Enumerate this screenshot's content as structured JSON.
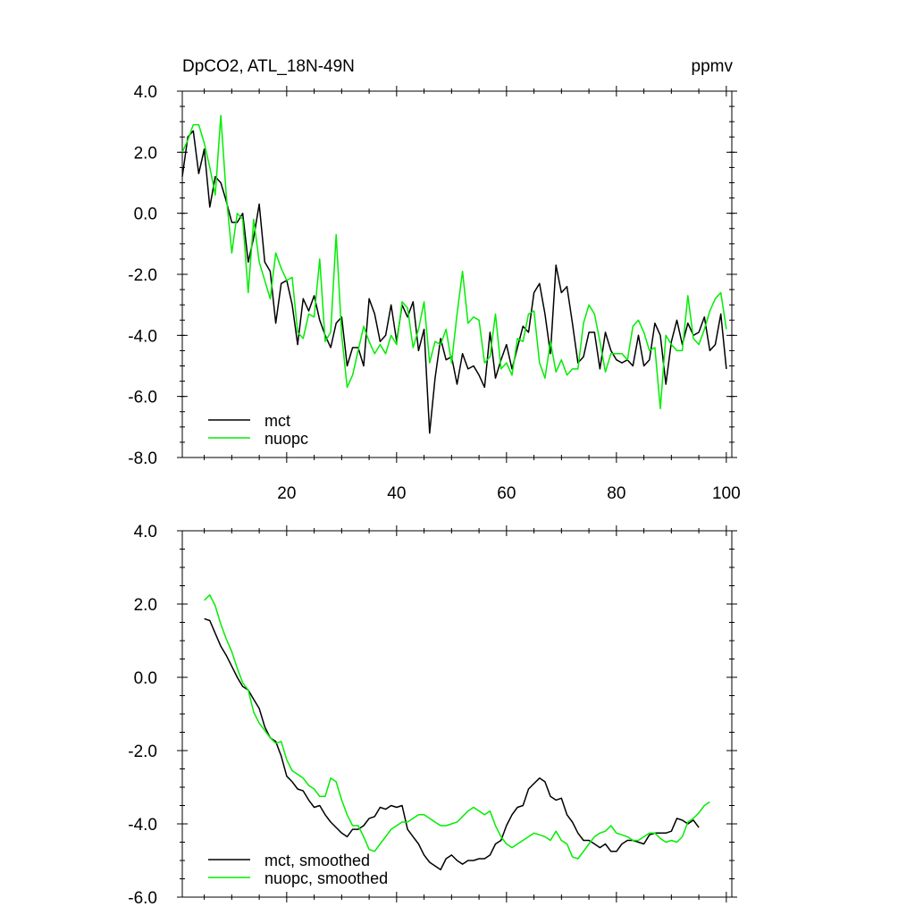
{
  "colors": {
    "mct": "#000000",
    "nuopc": "#00ee00"
  },
  "chart_data": [
    {
      "type": "line",
      "title": "DpCO2, ATL_18N-49N",
      "units": "ppmv",
      "xlim": [
        1,
        101
      ],
      "ylim": [
        -8,
        4
      ],
      "x_ticks": [
        20,
        40,
        60,
        80,
        100
      ],
      "x_tick_labels": [
        "20",
        "40",
        "60",
        "80",
        "100"
      ],
      "y_ticks": [
        4,
        2,
        0,
        -2,
        -4,
        -6,
        -8
      ],
      "y_tick_labels": [
        "4.0",
        "2.0",
        "0.0",
        "-2.0",
        "-4.0",
        "-6.0",
        "-8.0"
      ],
      "legend": "bottom-left",
      "grid": false,
      "series": [
        {
          "name": "mct",
          "color": "#000000",
          "x_start": 1,
          "values": [
            1.2,
            2.5,
            2.7,
            1.3,
            2.1,
            0.2,
            1.2,
            1.0,
            0.4,
            -0.3,
            -0.3,
            0.0,
            -1.6,
            -0.8,
            0.3,
            -1.6,
            -1.9,
            -3.6,
            -2.3,
            -2.2,
            -3.0,
            -4.3,
            -2.8,
            -3.2,
            -2.7,
            -3.5,
            -4.0,
            -4.4,
            -3.6,
            -3.4,
            -5.0,
            -4.4,
            -4.4,
            -5.0,
            -2.8,
            -3.3,
            -4.2,
            -4.0,
            -3.0,
            -4.2,
            -3.0,
            -3.4,
            -2.9,
            -4.5,
            -3.8,
            -7.2,
            -5.4,
            -4.1,
            -4.8,
            -4.7,
            -5.6,
            -4.6,
            -5.1,
            -5.0,
            -5.3,
            -5.7,
            -3.9,
            -5.4,
            -4.8,
            -4.3,
            -5.1,
            -4.4,
            -3.7,
            -3.9,
            -2.6,
            -2.3,
            -3.3,
            -4.6,
            -1.7,
            -2.6,
            -2.4,
            -3.6,
            -4.9,
            -4.7,
            -3.9,
            -3.9,
            -5.1,
            -3.9,
            -4.5,
            -4.8,
            -4.9,
            -4.8,
            -5.0,
            -4.0,
            -5.0,
            -4.8,
            -3.6,
            -4.0,
            -5.6,
            -4.2,
            -3.5,
            -4.3,
            -3.6,
            -4.0,
            -3.9,
            -3.4,
            -4.5,
            -4.3,
            -3.3,
            -5.1
          ]
        },
        {
          "name": "nuopc",
          "color": "#00ee00",
          "x_start": 1,
          "values": [
            2.0,
            2.4,
            2.9,
            2.9,
            2.3,
            1.5,
            0.6,
            3.2,
            0.6,
            -1.3,
            0.0,
            -0.2,
            -2.6,
            -0.2,
            -1.6,
            -2.2,
            -2.8,
            -1.3,
            -1.8,
            -2.2,
            -2.1,
            -3.9,
            -4.1,
            -3.3,
            -3.4,
            -1.5,
            -4.2,
            -3.9,
            -0.7,
            -4.0,
            -5.7,
            -5.3,
            -4.5,
            -3.7,
            -4.2,
            -4.6,
            -4.3,
            -4.6,
            -4.0,
            -4.3,
            -2.9,
            -3.1,
            -4.4,
            -3.8,
            -2.9,
            -4.9,
            -4.2,
            -4.3,
            -3.8,
            -4.9,
            -3.3,
            -1.9,
            -3.6,
            -3.4,
            -3.5,
            -4.9,
            -4.7,
            -3.3,
            -5.1,
            -4.9,
            -5.3,
            -4.1,
            -4.2,
            -3.3,
            -3.2,
            -4.9,
            -5.4,
            -4.2,
            -5.2,
            -4.8,
            -5.3,
            -5.1,
            -5.1,
            -3.6,
            -3.0,
            -3.3,
            -4.2,
            -5.2,
            -4.6,
            -4.6,
            -4.6,
            -4.8,
            -3.7,
            -3.5,
            -3.9,
            -4.5,
            -4.4,
            -6.4,
            -4.0,
            -4.3,
            -4.5,
            -4.5,
            -2.7,
            -4.1,
            -4.3,
            -3.8,
            -3.2,
            -2.8,
            -2.6,
            -3.8
          ]
        }
      ]
    },
    {
      "type": "line",
      "xlim": [
        1,
        101
      ],
      "ylim": [
        -6,
        4
      ],
      "x_ticks": [
        20,
        40,
        60,
        80,
        100
      ],
      "y_ticks": [
        4,
        2,
        0,
        -2,
        -4,
        -6
      ],
      "y_tick_labels": [
        "4.0",
        "2.0",
        "0.0",
        "-2.0",
        "-4.0",
        "-6.0"
      ],
      "legend": "bottom-left",
      "grid": false,
      "series": [
        {
          "name": "mct, smoothed",
          "color": "#000000",
          "x_start": 5,
          "values": [
            1.6,
            1.55,
            1.2,
            0.85,
            0.6,
            0.3,
            0.0,
            -0.25,
            -0.35,
            -0.6,
            -0.85,
            -1.35,
            -1.65,
            -1.75,
            -2.15,
            -2.7,
            -2.85,
            -3.05,
            -3.1,
            -3.35,
            -3.55,
            -3.5,
            -3.75,
            -3.95,
            -4.1,
            -4.25,
            -4.35,
            -4.15,
            -4.15,
            -4.05,
            -3.85,
            -3.8,
            -3.55,
            -3.6,
            -3.5,
            -3.55,
            -3.5,
            -4.15,
            -4.35,
            -4.55,
            -4.85,
            -5.05,
            -5.15,
            -5.25,
            -4.95,
            -4.85,
            -5.0,
            -5.1,
            -5.0,
            -5.0,
            -4.95,
            -4.95,
            -4.85,
            -4.55,
            -4.45,
            -4.05,
            -3.75,
            -3.55,
            -3.5,
            -3.05,
            -2.9,
            -2.75,
            -2.85,
            -3.25,
            -3.35,
            -3.3,
            -3.75,
            -3.95,
            -4.25,
            -4.45,
            -4.45,
            -4.55,
            -4.65,
            -4.55,
            -4.75,
            -4.75,
            -4.55,
            -4.45,
            -4.45,
            -4.5,
            -4.55,
            -4.3,
            -4.25,
            -4.25,
            -4.25,
            -4.2,
            -3.85,
            -3.9,
            -4.0,
            -3.9,
            -4.1
          ]
        },
        {
          "name": "nuopc, smoothed",
          "color": "#00ee00",
          "x_start": 5,
          "values": [
            2.1,
            2.25,
            1.95,
            1.45,
            1.05,
            0.7,
            0.25,
            -0.15,
            -0.35,
            -0.95,
            -1.25,
            -1.45,
            -1.65,
            -1.8,
            -1.75,
            -2.25,
            -2.55,
            -2.65,
            -2.75,
            -2.95,
            -3.05,
            -3.25,
            -3.25,
            -2.75,
            -2.85,
            -3.35,
            -3.75,
            -4.05,
            -4.05,
            -4.35,
            -4.7,
            -4.75,
            -4.55,
            -4.35,
            -4.15,
            -4.05,
            -3.95,
            -3.95,
            -3.85,
            -3.75,
            -3.75,
            -3.85,
            -3.95,
            -4.05,
            -4.05,
            -4.0,
            -3.95,
            -3.8,
            -3.65,
            -3.55,
            -3.65,
            -3.75,
            -3.65,
            -4.05,
            -4.35,
            -4.55,
            -4.65,
            -4.55,
            -4.45,
            -4.35,
            -4.25,
            -4.3,
            -4.35,
            -4.45,
            -4.2,
            -4.45,
            -4.55,
            -4.9,
            -4.95,
            -4.75,
            -4.55,
            -4.35,
            -4.25,
            -4.2,
            -4.05,
            -4.25,
            -4.3,
            -4.35,
            -4.45,
            -4.45,
            -4.35,
            -4.25,
            -4.25,
            -4.4,
            -4.5,
            -4.45,
            -4.5,
            -4.35,
            -3.95,
            -3.85,
            -3.7,
            -3.5,
            -3.4
          ]
        }
      ]
    }
  ]
}
